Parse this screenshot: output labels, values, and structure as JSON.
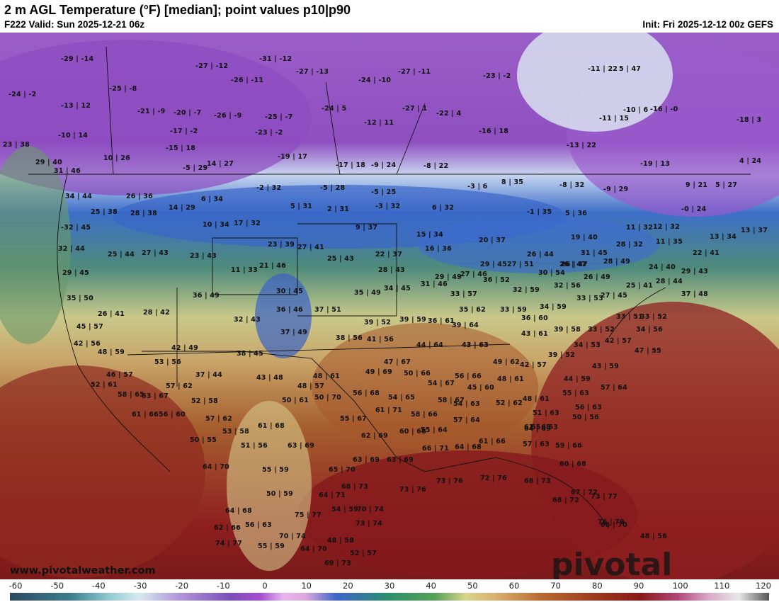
{
  "header": {
    "title": "2 m AGL Temperature (°F) [median]; point values p10|p90",
    "valid": "F222 Valid: Sun 2025-12-21 06z",
    "init": "Init: Fri 2025-12-12 00z GEFS"
  },
  "watermark": {
    "url": "www.pivotalweather.com",
    "logo": "pivotal weather"
  },
  "colorbar": {
    "ticks": [
      "-60",
      "-50",
      "-40",
      "-30",
      "-20",
      "-10",
      "0",
      "10",
      "20",
      "30",
      "40",
      "50",
      "60",
      "70",
      "80",
      "90",
      "100",
      "110",
      "120"
    ]
  },
  "points": [
    "-29|-14",
    "-27|-12",
    "-31|-12",
    "-27|-13",
    "-24|-10",
    "-27|-11",
    "-23|-2",
    "-11|22",
    "5|47",
    "-24|-2",
    "-25|-8",
    "-26|-11",
    "-13|12",
    "-21|-9",
    "-20|-7",
    "-26|-9",
    "-25|-7",
    "-24|5",
    "-27|1",
    "-22|4",
    "-12|11",
    "-10|6",
    "-16|-0",
    "-11|15",
    "-18|3",
    "-10|14",
    "-17|-2",
    "-23|-2",
    "-16|18",
    "23|38",
    "-15|18",
    "10|26",
    "-13|22",
    "-5|29",
    "-19|17",
    "29|40",
    "14|27",
    "-17|18",
    "-9|24",
    "-8|22",
    "-19|13",
    "4|24",
    "31|46",
    "-2|32",
    "-5|28",
    "-5|25",
    "-3|6",
    "8|35",
    "-8|32",
    "-9|29",
    "9|21",
    "5|27",
    "34|44",
    "26|36",
    "6|34",
    "5|31",
    "2|31",
    "-3|32",
    "6|32",
    "25|38",
    "14|29",
    "28|38",
    "-0|24",
    "-1|35",
    "5|36",
    "-32|45",
    "10|34",
    "17|32",
    "9|37",
    "15|34",
    "11|32",
    "12|32",
    "13|34",
    "13|37",
    "32|44",
    "23|39",
    "27|41",
    "19|40",
    "11|35",
    "16|36",
    "20|37",
    "28|32",
    "25|44",
    "27|43",
    "23|43",
    "22|37",
    "26|44",
    "31|45",
    "22|41",
    "29|45",
    "26|47",
    "11|33",
    "21|46",
    "25|43",
    "29|45",
    "27|51",
    "26|47",
    "28|49",
    "24|40",
    "29|43",
    "28|43",
    "30|54",
    "26|49",
    "29|49",
    "27|46",
    "36|52",
    "28|44",
    "37|48",
    "35|50",
    "36|49",
    "30|45",
    "35|49",
    "34|45",
    "31|46",
    "33|57",
    "32|59",
    "32|56",
    "25|41",
    "27|45",
    "26|41",
    "28|42",
    "36|46",
    "37|51",
    "35|62",
    "33|59",
    "34|59",
    "33|53",
    "33|51",
    "33|52",
    "32|43",
    "39|52",
    "39|59",
    "36|61",
    "39|64",
    "36|60",
    "45|57",
    "37|49",
    "38|56",
    "41|56",
    "43|63",
    "43|61",
    "39|58",
    "33|52",
    "34|56",
    "42|56",
    "44|64",
    "43|63",
    "34|53",
    "42|57",
    "48|59",
    "42|49",
    "38|45",
    "47|55",
    "53|56",
    "47|67",
    "49|62",
    "39|52",
    "46|57",
    "37|44",
    "48|61",
    "49|69",
    "50|66",
    "56|66",
    "42|57",
    "43|59",
    "52|61",
    "57|62",
    "43|48",
    "48|57",
    "54|67",
    "48|61",
    "44|59",
    "57|64",
    "58|65",
    "63|67",
    "52|58",
    "50|61",
    "50|70",
    "56|68",
    "54|65",
    "45|60",
    "48|61",
    "55|63",
    "56|63",
    "61|66",
    "56|60",
    "57|62",
    "55|67",
    "61|71",
    "58|67",
    "54|63",
    "52|62",
    "51|63",
    "55|63",
    "50|56",
    "53|58",
    "61|68",
    "58|66",
    "57|64",
    "61|65",
    "50|55",
    "51|56",
    "63|69",
    "62|69",
    "60|68",
    "55|64",
    "64|69",
    "66|71",
    "63|69",
    "64|68",
    "61|66",
    "57|63",
    "59|66",
    "60|68",
    "55|59",
    "65|70",
    "63|69",
    "73|76",
    "73|76",
    "72|76",
    "68|73",
    "64|70",
    "50|59",
    "64|71",
    "68|73",
    "67|72",
    "68|72",
    "73|77",
    "64|68",
    "54|59",
    "70|74",
    "74|77",
    "66|70",
    "62|66",
    "56|63",
    "75|77",
    "76|79",
    "48|56",
    "70|74",
    "73|74",
    "55|59",
    "48|58",
    "64|70",
    "52|57",
    "69|73"
  ]
}
